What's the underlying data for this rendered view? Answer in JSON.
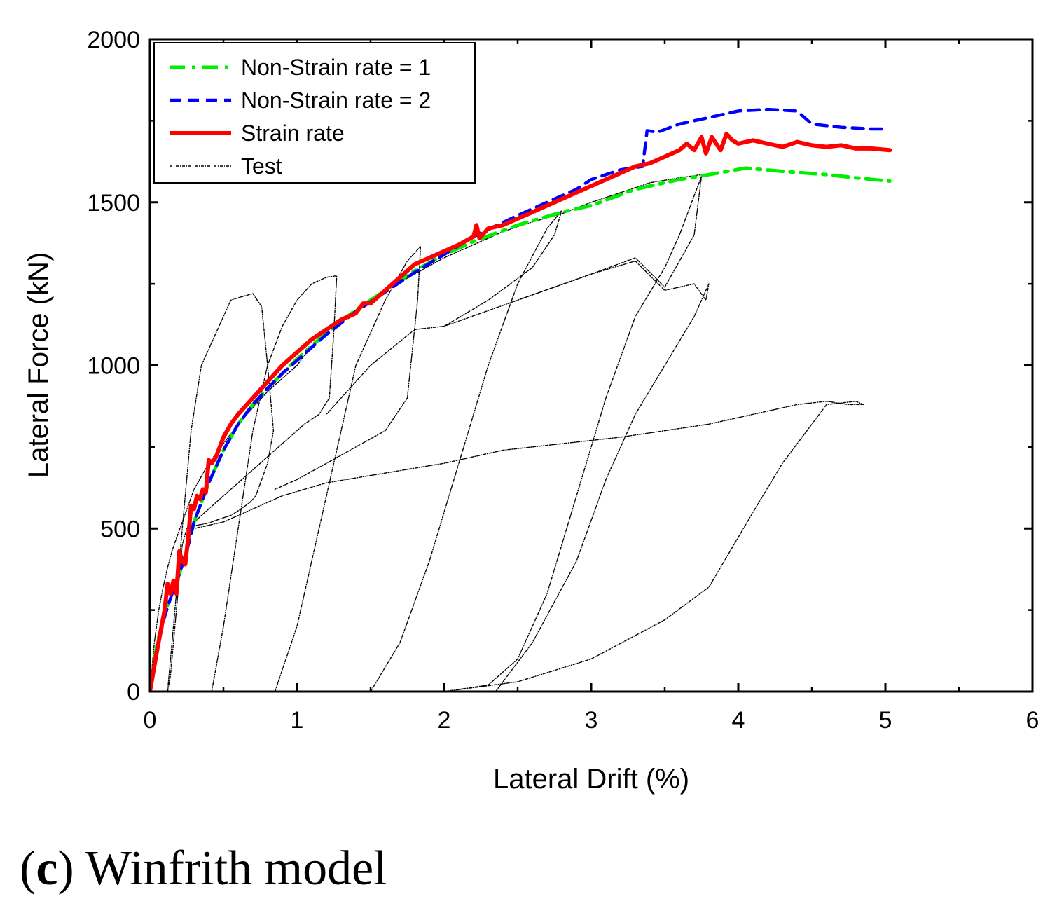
{
  "caption": {
    "open": "(",
    "letter": "c",
    "close": ")",
    "text": " Winfrith model"
  },
  "chart_data": {
    "type": "line",
    "xlabel": "Lateral Drift (%)",
    "ylabel": "Lateral Force (kN)",
    "xlim": [
      0,
      6
    ],
    "ylim": [
      0,
      2000
    ],
    "xticks": [
      0,
      1,
      2,
      3,
      4,
      5,
      6
    ],
    "yticks": [
      0,
      500,
      1000,
      1500,
      2000
    ],
    "legend_position": "top-left",
    "grid": false,
    "series": [
      {
        "name": "Non-Strain rate = 1",
        "color": "#00ee00",
        "style": "dashdot",
        "x": [
          0,
          0.05,
          0.1,
          0.15,
          0.2,
          0.25,
          0.3,
          0.4,
          0.5,
          0.6,
          0.7,
          0.8,
          0.9,
          1.0,
          1.2,
          1.4,
          1.6,
          1.8,
          2.0,
          2.2,
          2.5,
          2.8,
          3.0,
          3.3,
          3.6,
          3.8,
          4.05,
          4.3,
          4.6,
          4.8,
          5.03
        ],
        "y": [
          0,
          150,
          240,
          300,
          360,
          430,
          520,
          640,
          740,
          820,
          880,
          930,
          975,
          1020,
          1100,
          1170,
          1230,
          1290,
          1340,
          1380,
          1430,
          1470,
          1490,
          1540,
          1570,
          1585,
          1605,
          1595,
          1585,
          1575,
          1565
        ]
      },
      {
        "name": "Non-Strain rate = 2",
        "color": "#0000ff",
        "style": "dashed",
        "x": [
          0,
          0.05,
          0.1,
          0.15,
          0.2,
          0.25,
          0.3,
          0.4,
          0.5,
          0.6,
          0.7,
          0.8,
          0.9,
          1.0,
          1.2,
          1.4,
          1.6,
          1.8,
          2.0,
          2.2,
          2.5,
          2.8,
          2.9,
          3.0,
          3.2,
          3.35,
          3.38,
          3.45,
          3.6,
          3.8,
          4.0,
          4.2,
          4.4,
          4.5,
          4.7,
          4.9,
          5.0
        ],
        "y": [
          0,
          140,
          230,
          300,
          360,
          430,
          520,
          640,
          740,
          820,
          880,
          930,
          975,
          1015,
          1095,
          1165,
          1225,
          1285,
          1340,
          1395,
          1460,
          1520,
          1540,
          1570,
          1600,
          1610,
          1720,
          1715,
          1740,
          1760,
          1780,
          1785,
          1780,
          1740,
          1730,
          1725,
          1725
        ]
      },
      {
        "name": "Strain rate",
        "color": "#ff0000",
        "style": "solid",
        "x": [
          0,
          0.05,
          0.1,
          0.12,
          0.14,
          0.16,
          0.18,
          0.2,
          0.22,
          0.24,
          0.26,
          0.28,
          0.3,
          0.32,
          0.34,
          0.36,
          0.38,
          0.4,
          0.42,
          0.45,
          0.5,
          0.55,
          0.6,
          0.7,
          0.8,
          0.9,
          1.0,
          1.1,
          1.2,
          1.3,
          1.4,
          1.45,
          1.5,
          1.6,
          1.7,
          1.8,
          1.9,
          2.0,
          2.1,
          2.2,
          2.22,
          2.24,
          2.26,
          2.3,
          2.4,
          2.5,
          2.6,
          2.7,
          2.8,
          2.9,
          3.0,
          3.1,
          3.2,
          3.3,
          3.4,
          3.5,
          3.6,
          3.65,
          3.7,
          3.75,
          3.78,
          3.82,
          3.85,
          3.88,
          3.92,
          3.96,
          4.0,
          4.1,
          4.2,
          4.3,
          4.4,
          4.5,
          4.6,
          4.7,
          4.8,
          4.9,
          5.03
        ],
        "y": [
          0,
          130,
          250,
          330,
          300,
          340,
          300,
          430,
          400,
          390,
          470,
          570,
          560,
          600,
          590,
          620,
          610,
          710,
          700,
          720,
          780,
          820,
          850,
          900,
          950,
          1000,
          1040,
          1080,
          1110,
          1140,
          1160,
          1190,
          1190,
          1230,
          1270,
          1310,
          1330,
          1350,
          1370,
          1395,
          1430,
          1390,
          1400,
          1420,
          1430,
          1450,
          1470,
          1490,
          1510,
          1530,
          1550,
          1570,
          1590,
          1610,
          1620,
          1640,
          1660,
          1680,
          1660,
          1700,
          1650,
          1700,
          1680,
          1660,
          1710,
          1690,
          1680,
          1690,
          1680,
          1670,
          1685,
          1675,
          1670,
          1675,
          1665,
          1665,
          1660
        ]
      },
      {
        "name": "Test",
        "color": "#000000",
        "style": "dotted",
        "segments": [
          {
            "x": [
              0,
              0.03,
              0.06,
              0.09,
              0.12,
              0.15,
              0.18,
              0.22,
              0.26,
              0.3,
              0.35,
              0.4,
              0.5,
              0.6,
              0.7,
              0.8,
              0.9,
              1.0,
              1.1,
              1.2,
              1.4,
              1.6,
              1.8,
              2.0,
              2.2,
              2.4,
              2.6,
              2.8,
              3.0,
              3.2,
              3.4,
              3.6,
              3.75
            ],
            "y": [
              0,
              150,
              250,
              320,
              380,
              430,
              470,
              520,
              570,
              620,
              660,
              700,
              760,
              820,
              870,
              920,
              960,
              1000,
              1060,
              1110,
              1170,
              1230,
              1280,
              1330,
              1370,
              1410,
              1440,
              1465,
              1500,
              1530,
              1560,
              1575,
              1585
            ]
          },
          {
            "x": [
              0.12,
              0.15,
              0.2,
              0.28,
              0.35,
              0.45,
              0.55,
              0.62,
              0.7,
              0.76,
              0.8,
              0.84,
              0.8,
              0.76,
              0.72,
              0.68,
              0.62,
              0.55,
              0.48,
              0.42,
              0.38,
              0.32,
              0.28,
              0.25,
              0.22,
              0.2,
              0.18,
              0.16,
              0.14,
              0.12
            ],
            "y": [
              0,
              150,
              400,
              800,
              1000,
              1100,
              1200,
              1210,
              1220,
              1180,
              1000,
              800,
              700,
              650,
              600,
              580,
              560,
              540,
              530,
              520,
              515,
              510,
              505,
              500,
              450,
              350,
              250,
              150,
              50,
              0
            ]
          },
          {
            "x": [
              0.42,
              0.5,
              0.6,
              0.7,
              0.8,
              0.9,
              1.0,
              1.1,
              1.2,
              1.27,
              1.25,
              1.22,
              1.15,
              1.05,
              0.95,
              0.85,
              0.75,
              0.65,
              0.55,
              0.45,
              0.35,
              0.28
            ],
            "y": [
              0,
              200,
              500,
              800,
              1000,
              1120,
              1200,
              1250,
              1270,
              1275,
              1100,
              900,
              850,
              820,
              780,
              740,
              700,
              660,
              620,
              580,
              540,
              510
            ]
          },
          {
            "x": [
              0.85,
              1.0,
              1.2,
              1.4,
              1.6,
              1.75,
              1.84,
              1.82,
              1.75,
              1.6,
              1.4,
              1.2,
              1.0,
              0.85
            ],
            "y": [
              0,
              200,
              600,
              1000,
              1200,
              1320,
              1365,
              1200,
              900,
              800,
              750,
              700,
              650,
              620
            ]
          },
          {
            "x": [
              1.5,
              1.7,
              1.9,
              2.1,
              2.3,
              2.5,
              2.7,
              2.8,
              2.75,
              2.6,
              2.3,
              2.0,
              1.8,
              1.5,
              1.3,
              1.2
            ],
            "y": [
              0,
              150,
              400,
              700,
              1000,
              1250,
              1420,
              1475,
              1400,
              1300,
              1200,
              1120,
              1110,
              1000,
              900,
              850
            ]
          },
          {
            "x": [
              2.0,
              2.3,
              2.5,
              2.7,
              2.9,
              3.1,
              3.3,
              3.5,
              3.6,
              3.7,
              3.75,
              3.7,
              3.5,
              3.3,
              3.0,
              2.5,
              2.0
            ],
            "y": [
              0,
              20,
              100,
              300,
              600,
              900,
              1150,
              1300,
              1400,
              1520,
              1580,
              1400,
              1240,
              1330,
              1280,
              1200,
              1120
            ]
          },
          {
            "x": [
              2.35,
              2.6,
              2.9,
              3.1,
              3.3,
              3.5,
              3.7,
              3.8,
              3.78,
              3.7,
              3.5,
              3.3,
              3.0,
              2.5
            ],
            "y": [
              0,
              150,
              400,
              650,
              850,
              1000,
              1150,
              1250,
              1200,
              1250,
              1230,
              1320,
              1280,
              1200
            ]
          },
          {
            "x": [
              2.0,
              2.5,
              3.0,
              3.5,
              3.8,
              4.1,
              4.3,
              4.6,
              4.8,
              4.85,
              4.75,
              4.6,
              4.4,
              4.2,
              4.0,
              3.8,
              3.5,
              3.2,
              2.8,
              2.4,
              2.0,
              1.6,
              1.2,
              0.9,
              0.7,
              0.5,
              0.3
            ],
            "y": [
              0,
              30,
              100,
              220,
              320,
              550,
              700,
              880,
              890,
              880,
              880,
              890,
              880,
              860,
              840,
              820,
              800,
              780,
              760,
              740,
              700,
              670,
              640,
              600,
              560,
              520,
              500
            ]
          }
        ]
      }
    ]
  }
}
